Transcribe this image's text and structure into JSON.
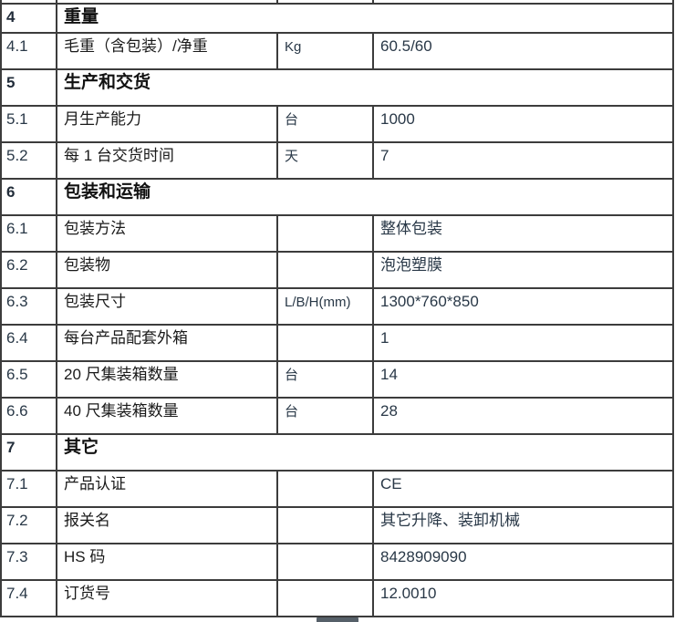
{
  "colors": {
    "border": "#3c3c3c",
    "label_text": "#1a1a1a",
    "value_text": "#293847",
    "scrollbar_thumb": "#566069",
    "background": "#ffffff"
  },
  "table": {
    "rows": [
      {
        "type": "section",
        "no": "4",
        "label": "重量"
      },
      {
        "type": "item",
        "no": "4.1",
        "label": "毛重（含包装）/净重",
        "unit": "Kg",
        "value": "60.5/60"
      },
      {
        "type": "section",
        "no": "5",
        "label": "生产和交货"
      },
      {
        "type": "item",
        "no": "5.1",
        "label": "月生产能力",
        "unit": "台",
        "value": "1000"
      },
      {
        "type": "item",
        "no": "5.2",
        "label": "每 1 台交货时间",
        "unit": "天",
        "value": "7"
      },
      {
        "type": "section",
        "no": "6",
        "label": "包装和运输"
      },
      {
        "type": "item",
        "no": "6.1",
        "label": "包装方法",
        "unit": "",
        "value": "整体包装"
      },
      {
        "type": "item",
        "no": "6.2",
        "label": "包装物",
        "unit": "",
        "value": "泡泡塑膜"
      },
      {
        "type": "item",
        "no": "6.3",
        "label": "包装尺寸",
        "unit": "L/B/H(mm)",
        "value": "1300*760*850"
      },
      {
        "type": "item",
        "no": "6.4",
        "label": "每台产品配套外箱",
        "unit": "",
        "value": "1"
      },
      {
        "type": "item",
        "no": "6.5",
        "label": "20 尺集装箱数量",
        "unit": "台",
        "value": "14"
      },
      {
        "type": "item",
        "no": "6.6",
        "label": "40 尺集装箱数量",
        "unit": "台",
        "value": "28"
      },
      {
        "type": "section",
        "no": "7",
        "label": "其它"
      },
      {
        "type": "item",
        "no": "7.1",
        "label": "产品认证",
        "unit": "",
        "value": "CE"
      },
      {
        "type": "item",
        "no": "7.2",
        "label": "报关名",
        "unit": "",
        "value": "其它升降、装卸机械"
      },
      {
        "type": "item",
        "no": "7.3",
        "label": "HS 码",
        "unit": "",
        "value": "8428909090"
      },
      {
        "type": "item",
        "no": "7.4",
        "label": "订货号",
        "unit": "",
        "value": "12.0010"
      }
    ]
  }
}
